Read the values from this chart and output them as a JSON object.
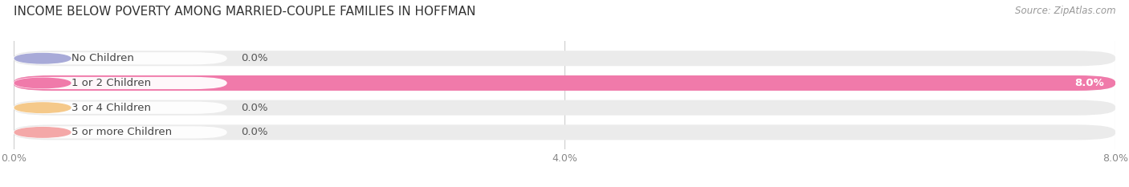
{
  "title": "INCOME BELOW POVERTY AMONG MARRIED-COUPLE FAMILIES IN HOFFMAN",
  "source": "Source: ZipAtlas.com",
  "categories": [
    "No Children",
    "1 or 2 Children",
    "3 or 4 Children",
    "5 or more Children"
  ],
  "values": [
    0.0,
    8.0,
    0.0,
    0.0
  ],
  "bar_colors": [
    "#a8aad8",
    "#f07aaa",
    "#f5c98a",
    "#f4a8a8"
  ],
  "bar_bg_colors": [
    "#ebebeb",
    "#ebebeb",
    "#ebebeb",
    "#ebebeb"
  ],
  "pill_colors": [
    "#a8aad8",
    "#f07aaa",
    "#f5c98a",
    "#f4a8a8"
  ],
  "xlim": [
    0,
    8.0
  ],
  "xticks": [
    0.0,
    4.0,
    8.0
  ],
  "xtick_labels": [
    "0.0%",
    "4.0%",
    "8.0%"
  ],
  "background_color": "#ffffff",
  "plot_bg_color": "#ffffff",
  "bar_height": 0.62,
  "title_fontsize": 11,
  "tick_fontsize": 9,
  "label_fontsize": 9.5,
  "value_fontsize": 9.5,
  "rounding_size": 0.28
}
